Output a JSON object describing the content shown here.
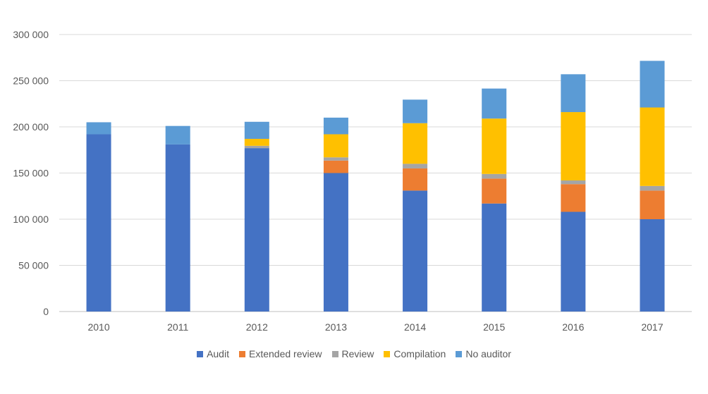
{
  "chart_data": {
    "type": "bar",
    "stacked": true,
    "title": "",
    "xlabel": "",
    "ylabel": "",
    "ylim": [
      0,
      300000
    ],
    "yticks": [
      0,
      50000,
      100000,
      150000,
      200000,
      250000,
      300000
    ],
    "ytick_labels": [
      "0",
      "50 000",
      "100 000",
      "150 000",
      "200 000",
      "250 000",
      "300 000"
    ],
    "grid": true,
    "legend_position": "bottom",
    "categories": [
      "2010",
      "2011",
      "2012",
      "2013",
      "2014",
      "2015",
      "2016",
      "2017"
    ],
    "series": [
      {
        "name": "Audit",
        "color": "#4472C4",
        "values": [
          192000,
          181000,
          177000,
          150000,
          131000,
          117000,
          108000,
          100000
        ]
      },
      {
        "name": "Extended review",
        "color": "#ED7D31",
        "values": [
          0,
          0,
          0,
          13500,
          24000,
          27000,
          30000,
          31000
        ]
      },
      {
        "name": "Review",
        "color": "#A5A5A5",
        "values": [
          0,
          0,
          2500,
          3500,
          5000,
          5000,
          4000,
          5000
        ]
      },
      {
        "name": "Compilation",
        "color": "#FFC000",
        "values": [
          0,
          0,
          7500,
          25000,
          44000,
          60000,
          74000,
          85000
        ]
      },
      {
        "name": "No auditor",
        "color": "#5B9BD5",
        "values": [
          13000,
          20000,
          18500,
          18000,
          25500,
          32500,
          41000,
          50500
        ]
      }
    ]
  }
}
